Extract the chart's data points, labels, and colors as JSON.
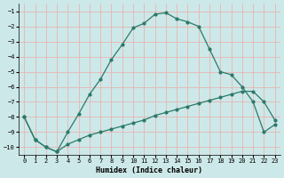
{
  "xlabel": "Humidex (Indice chaleur)",
  "background_color": "#cde8e8",
  "grid_color": "#e8b4b4",
  "line_color": "#2a7a6a",
  "xlim": [
    -0.5,
    23.5
  ],
  "ylim": [
    -10.5,
    -0.5
  ],
  "yticks": [
    -10,
    -9,
    -8,
    -7,
    -6,
    -5,
    -4,
    -3,
    -2,
    -1
  ],
  "xticks": [
    0,
    1,
    2,
    3,
    4,
    5,
    6,
    7,
    8,
    9,
    10,
    11,
    12,
    13,
    14,
    15,
    16,
    17,
    18,
    19,
    20,
    21,
    22,
    23
  ],
  "line1_y": [
    -8.0,
    -9.5,
    -10.0,
    -10.3,
    -9.0,
    -7.8,
    -6.5,
    -5.5,
    -4.2,
    -3.2,
    -2.1,
    -1.8,
    -1.2,
    -1.1,
    -1.5,
    -1.7,
    -2.0,
    -3.5,
    -5.0,
    -5.2,
    -6.0,
    -7.0,
    -9.0,
    -8.5
  ],
  "line2_y": [
    -8.0,
    -9.5,
    -10.0,
    -10.3,
    -9.8,
    -9.5,
    -9.2,
    -9.0,
    -8.8,
    -8.6,
    -8.4,
    -8.2,
    -7.9,
    -7.7,
    -7.5,
    -7.3,
    -7.1,
    -6.9,
    -6.7,
    -6.5,
    -6.3,
    -6.3,
    -7.0,
    -8.2
  ]
}
